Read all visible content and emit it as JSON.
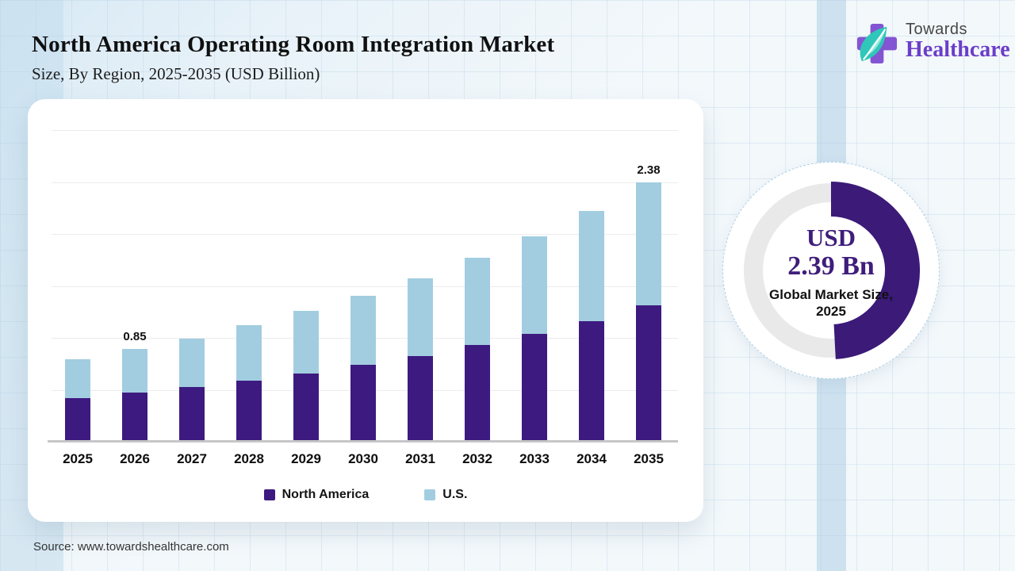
{
  "page": {
    "title": "North America Operating Room Integration Market",
    "subtitle": "Size, By Region, 2025-2035 (USD Billion)",
    "source": "Source: www.towardshealthcare.com"
  },
  "logo": {
    "word_top": "Towards",
    "word_bottom": "Healthcare",
    "icon": "cross-leaf-icon",
    "colors": {
      "cross": "#8355d2",
      "leaf": "#2fc7b9",
      "word_top": "#474747",
      "word_bottom": "#6b3ec9"
    }
  },
  "chart_data": {
    "type": "bar",
    "stacked": true,
    "title": "North America Operating Room Integration Market Size, By Region, 2025-2035 (USD Billion)",
    "unit": "USD Billion",
    "categories": [
      "2025",
      "2026",
      "2027",
      "2028",
      "2029",
      "2030",
      "2031",
      "2032",
      "2033",
      "2034",
      "2035"
    ],
    "series": [
      {
        "name": "North America",
        "color": "#3d1a80",
        "values": [
          0.4,
          0.45,
          0.5,
          0.56,
          0.63,
          0.71,
          0.79,
          0.89,
          0.99,
          1.11,
          1.25
        ]
      },
      {
        "name": "U.S.",
        "color": "#a2cde0",
        "values": [
          0.36,
          0.4,
          0.45,
          0.51,
          0.57,
          0.63,
          0.71,
          0.8,
          0.9,
          1.01,
          1.13
        ]
      }
    ],
    "totals": [
      0.76,
      0.85,
      0.95,
      1.07,
      1.2,
      1.34,
      1.5,
      1.69,
      1.89,
      2.12,
      2.38
    ],
    "data_labels": [
      {
        "category": "2026",
        "text": "0.85"
      },
      {
        "category": "2035",
        "text": "2.38"
      }
    ],
    "ylim": [
      0,
      2.9
    ],
    "grid": "horizontal",
    "legend_position": "bottom"
  },
  "donut": {
    "line1": "USD",
    "line2": "2.39 Bn",
    "caption_line1": "Global Market Size,",
    "caption_line2": "2025",
    "sweep_deg": 177,
    "arc_color": "#3b1a78",
    "track_color": "#e9e9e9"
  }
}
